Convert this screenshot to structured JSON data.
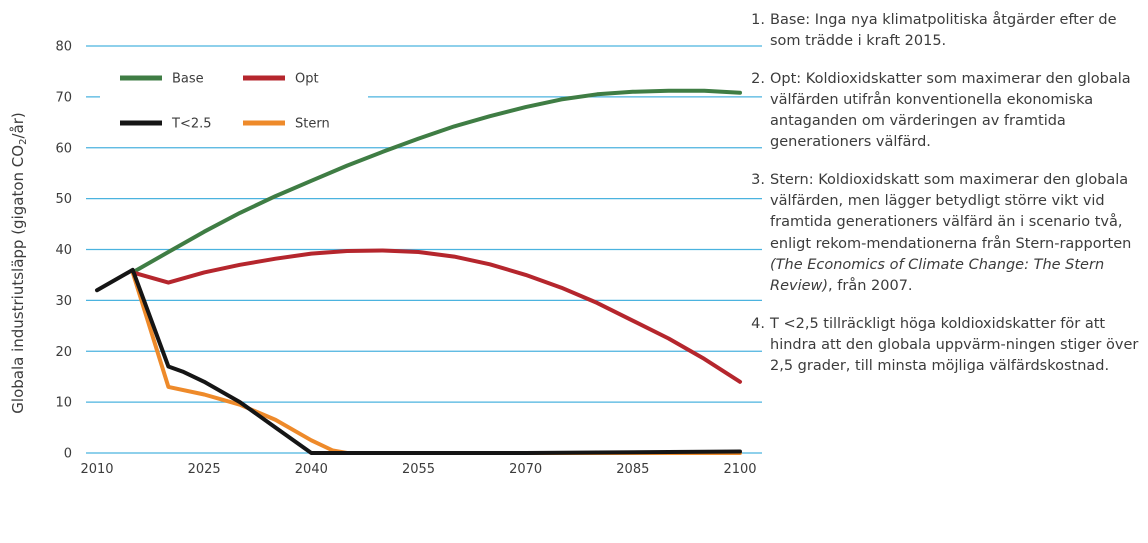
{
  "chart_data": {
    "type": "line",
    "ylabel_prefix": "Globala industriutsläpp (gigaton CO",
    "ylabel_sub": "2",
    "ylabel_suffix": "/år)",
    "xlabel": "",
    "ylim": [
      0,
      80
    ],
    "xlim": [
      2010,
      2100
    ],
    "yticks": [
      0,
      10,
      20,
      30,
      40,
      50,
      60,
      70,
      80
    ],
    "xticks": [
      2010,
      2025,
      2040,
      2055,
      2070,
      2085,
      2100
    ],
    "grid": true,
    "legend_position": "top-left",
    "series": [
      {
        "name": "Base",
        "color": "#3f7d44",
        "x": [
          2015,
          2020,
          2025,
          2030,
          2035,
          2040,
          2045,
          2050,
          2055,
          2060,
          2065,
          2070,
          2075,
          2080,
          2085,
          2090,
          2095,
          2100
        ],
        "y": [
          35.5,
          39.5,
          43.5,
          47.2,
          50.5,
          53.5,
          56.5,
          59.2,
          61.8,
          64.2,
          66.2,
          68.0,
          69.5,
          70.5,
          71.0,
          71.2,
          71.2,
          70.8
        ]
      },
      {
        "name": "Opt",
        "color": "#b5262d",
        "x": [
          2015,
          2020,
          2025,
          2030,
          2035,
          2040,
          2045,
          2050,
          2055,
          2060,
          2065,
          2070,
          2075,
          2080,
          2085,
          2090,
          2095,
          2100
        ],
        "y": [
          35.5,
          33.5,
          35.5,
          37.0,
          38.2,
          39.2,
          39.7,
          39.8,
          39.5,
          38.6,
          37.1,
          35.0,
          32.5,
          29.5,
          26.0,
          22.5,
          18.5,
          14.0
        ]
      },
      {
        "name": "T<2.5",
        "color": "#151515",
        "x": [
          2010,
          2015,
          2020,
          2022,
          2025,
          2030,
          2035,
          2040,
          2045,
          2050,
          2060,
          2070,
          2080,
          2090,
          2100
        ],
        "y": [
          32,
          36,
          17,
          16,
          14,
          10,
          5,
          0,
          0,
          0,
          0,
          0,
          0.1,
          0.2,
          0.3
        ]
      },
      {
        "name": "Stern",
        "color": "#ee8a2a",
        "x": [
          2015,
          2020,
          2025,
          2030,
          2035,
          2040,
          2043,
          2045,
          2050,
          2060,
          2070,
          2080,
          2090,
          2100
        ],
        "y": [
          35.5,
          13,
          11.5,
          9.5,
          6.5,
          2.5,
          0.5,
          0,
          0,
          0,
          0,
          0,
          0,
          0
        ]
      }
    ]
  },
  "notes": [
    {
      "num": "1.",
      "text": "Base: Inga nya klimatpolitiska åtgärder efter de som trädde i kraft 2015."
    },
    {
      "num": "2.",
      "text": "Opt: Koldioxidskatter som maximerar den globala välfärden utifrån konventionella ekonomiska antaganden om värderingen av framtida generationers välfärd."
    },
    {
      "num": "3.",
      "text": "Stern: Koldioxidskatt som maximerar den globala välfärden, men lägger betydligt större vikt vid framtida generationers välfärd än i scenario två, enligt rekom-mendationerna från Stern-rapporten",
      "italic": "(The Economics of Climate Change: The Stern Review)",
      "tail": ", från 2007."
    },
    {
      "num": "4.",
      "text": "T <2,5 tillräckligt höga koldioxidskatter för att hindra att den globala uppvärm-ningen stiger över 2,5 grader, till minsta möjliga välfärdskostnad."
    }
  ]
}
